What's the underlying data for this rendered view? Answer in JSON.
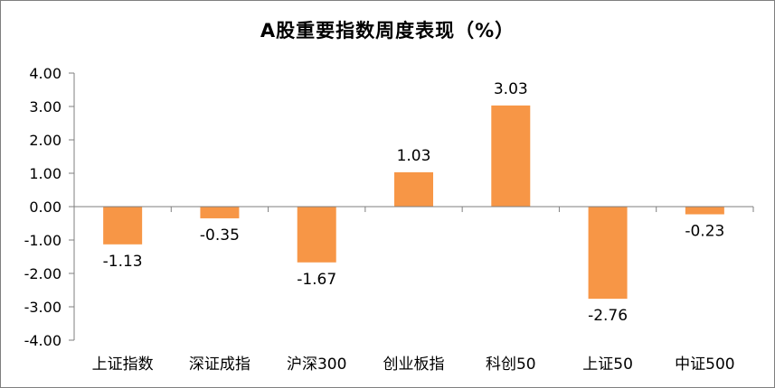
{
  "chart_data": {
    "type": "bar",
    "title": "A股重要指数周度表现（%）",
    "categories": [
      "上证指数",
      "深证成指",
      "沪深300",
      "创业板指",
      "科创50",
      "上证50",
      "中证500"
    ],
    "values": [
      -1.13,
      -0.35,
      -1.67,
      1.03,
      3.03,
      -2.76,
      -0.23
    ],
    "value_labels": [
      "-1.13",
      "-0.35",
      "-1.67",
      "1.03",
      "3.03",
      "-2.76",
      "-0.23"
    ],
    "ylim": [
      -4,
      4
    ],
    "yticks": [
      "4.00",
      "3.00",
      "2.00",
      "1.00",
      "0.00",
      "-1.00",
      "-2.00",
      "-3.00",
      "-4.00"
    ],
    "ytick_values": [
      4,
      3,
      2,
      1,
      0,
      -1,
      -2,
      -3,
      -4
    ],
    "bar_color": "#F79646",
    "axis_color": "#7f7f7f",
    "grid": false,
    "legend": "none"
  }
}
